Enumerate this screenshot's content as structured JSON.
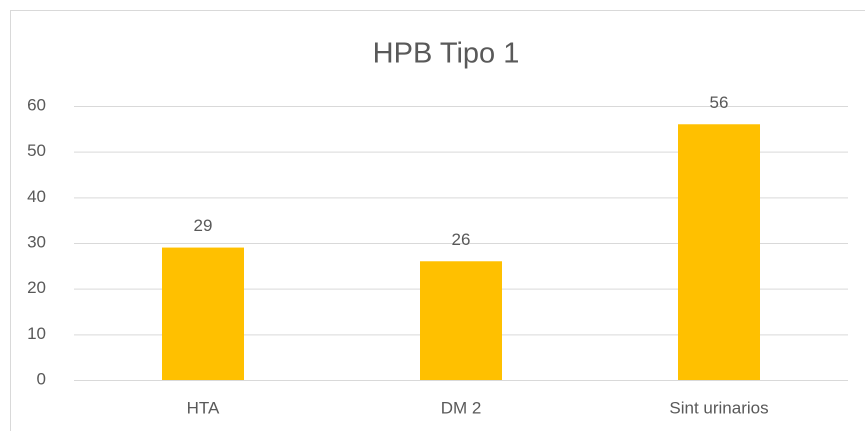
{
  "chart_data": {
    "type": "bar",
    "title": "HPB Tipo 1",
    "categories": [
      "HTA",
      "DM 2",
      "Sint urinarios"
    ],
    "values": [
      29,
      26,
      56
    ],
    "color": "#ffc000",
    "ylim": [
      0,
      60
    ],
    "yticks": [
      0,
      10,
      20,
      30,
      40,
      50,
      60
    ],
    "grid": true
  }
}
